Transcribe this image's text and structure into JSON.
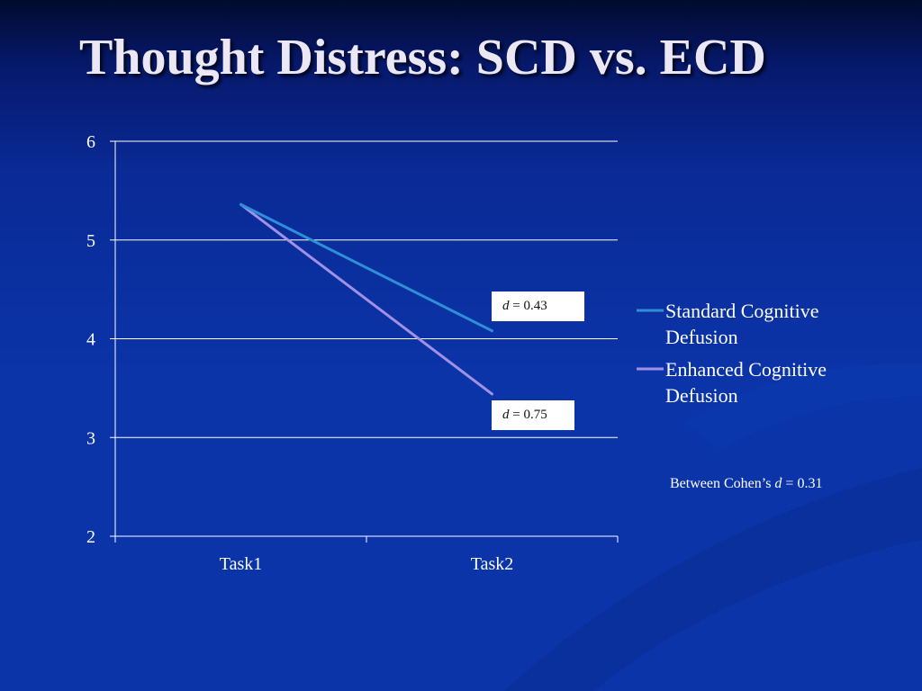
{
  "slide": {
    "title": "Thought Distress: SCD vs. ECD"
  },
  "chart_data": {
    "type": "line",
    "categories": [
      "Task1",
      "Task2"
    ],
    "series": [
      {
        "name": "Standard Cognitive Defusion",
        "values": [
          5.36,
          4.08
        ],
        "color": "#2e8fd6"
      },
      {
        "name": "Enhanced Cognitive Defusion",
        "values": [
          5.36,
          3.44
        ],
        "color": "#a191e6"
      }
    ],
    "ylim": [
      2,
      6
    ],
    "yticks": [
      "2",
      "3",
      "4",
      "5",
      "6"
    ],
    "grid": true,
    "legend_position": "right",
    "annotations": {
      "scd_d_var": "d",
      "scd_d_rest": " = 0.43",
      "ecd_d_var": "d",
      "ecd_d_rest": " = 0.75",
      "between_prefix": "Between Cohen’s ",
      "between_var": "d",
      "between_rest": " = 0.31"
    }
  },
  "colors": {
    "background_top": "#020a2e",
    "background_main": "#0b34a8",
    "gridline": "#ffffff",
    "title": "#ece7f4"
  }
}
